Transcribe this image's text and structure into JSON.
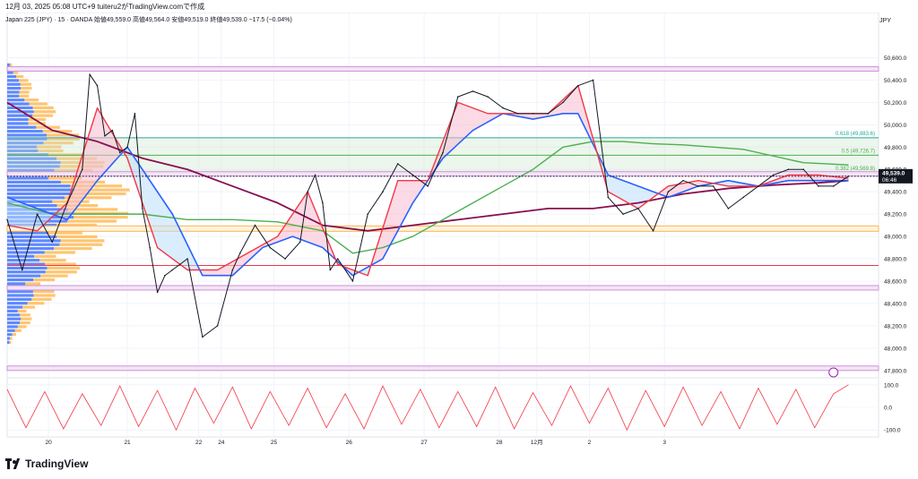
{
  "header": {
    "title": "12月 03, 2025 05:08 UTC+9  tuiteru2がTradingView.comで作成",
    "symbol_line": "Japan 225 (JPY) · 15 · OANDA  始値49,559.0  高値49,564.0  安値49,519.0  終値49,539.0  −17.5 (−0.04%)",
    "currency": "JPY"
  },
  "branding": {
    "logo_text": "TradingView"
  },
  "colors": {
    "price": "#131722",
    "blue_ma": "#2962ff",
    "red_ma": "#f23645",
    "green_ma": "#4caf50",
    "maroon_ma": "#880e4f",
    "volume_profile_blue": "#2962ff",
    "volume_profile_orange": "#ffb74d",
    "purple_zone": "#ce93d8",
    "fib_teal": "#26a69a"
  },
  "chart_data": [
    {
      "type": "line",
      "title": "",
      "xlabel": "",
      "ylabel": "",
      "x_ticks": [
        "20",
        "21",
        "22",
        "24",
        "25",
        "26",
        "27",
        "28",
        "12月",
        "2",
        "3"
      ],
      "y_ticks": [
        "50,600.0",
        "50,400.0",
        "50,200.0",
        "50,000.0",
        "49,800.0",
        "49,600.0",
        "49,400.0",
        "49,200.0",
        "49,000.0",
        "48,800.0",
        "48,600.0",
        "48,400.0",
        "48,200.0",
        "48,000.0",
        "47,800.0"
      ],
      "ylim": [
        47750,
        50700
      ],
      "grid": true,
      "price_label": "49,539.0",
      "countdown_label": "06:46",
      "price_line": 49539,
      "fib_levels": [
        {
          "label": "0.618 (49,883.6)",
          "value": 49883.6
        },
        {
          "label": "0.5 (49,726.7)",
          "value": 49726.7
        },
        {
          "label": "0.382 (49,569.8)",
          "value": 49569.8
        }
      ],
      "horizontal_levels": [
        {
          "value": 50500,
          "kind": "purple_zone"
        },
        {
          "value": 49560,
          "kind": "purple_zone"
        },
        {
          "value": 49070,
          "kind": "orange_band"
        },
        {
          "value": 48740,
          "kind": "red_line"
        },
        {
          "value": 48540,
          "kind": "purple_zone"
        },
        {
          "value": 47820,
          "kind": "purple_zone"
        }
      ],
      "series": [
        {
          "role": "price",
          "x": [
            0,
            0.2,
            0.4,
            0.6,
            0.8,
            1,
            1.1,
            1.2,
            1.3,
            1.4,
            1.5,
            1.6,
            1.7,
            1.8,
            1.9,
            2,
            2.1,
            2.2,
            2.4,
            2.6,
            2.8,
            3,
            3.1,
            3.3,
            3.5,
            3.7,
            3.9,
            4,
            4.1,
            4.2,
            4.3,
            4.4,
            4.6,
            4.8,
            5,
            5.2,
            5.4,
            5.6,
            5.8,
            6,
            6.2,
            6.4,
            6.6,
            6.8,
            7,
            7.2,
            7.4,
            7.6,
            7.8,
            8,
            8.2,
            8.4,
            8.6,
            8.8,
            9,
            9.2,
            9.4,
            9.6,
            9.8,
            10,
            10.2,
            10.4,
            10.6,
            10.8,
            11,
            11.2
          ],
          "y": [
            49150,
            48700,
            49200,
            48950,
            49300,
            49600,
            50450,
            50350,
            49900,
            49950,
            49750,
            49800,
            50100,
            49250,
            48900,
            48500,
            48650,
            48700,
            48800,
            48100,
            48200,
            48700,
            48850,
            49100,
            48900,
            48800,
            48950,
            49400,
            49550,
            49300,
            48700,
            48800,
            48600,
            49200,
            49400,
            49650,
            49550,
            49450,
            49750,
            50250,
            50300,
            50250,
            50150,
            50100,
            50100,
            50100,
            50200,
            50350,
            50400,
            49350,
            49200,
            49250,
            49050,
            49400,
            49500,
            49450,
            49450,
            49250,
            49350,
            49450,
            49550,
            49600,
            49600,
            49450,
            49450,
            49539
          ]
        },
        {
          "role": "blue_ma",
          "x": [
            0,
            0.8,
            1.2,
            1.6,
            2.2,
            2.6,
            3,
            3.4,
            3.8,
            4.2,
            4.6,
            5,
            5.4,
            5.8,
            6.2,
            6.6,
            7,
            7.4,
            7.6,
            8,
            8.4,
            8.8,
            9.2,
            9.6,
            10,
            10.4,
            10.8,
            11.2
          ],
          "y": [
            49350,
            49150,
            49500,
            49800,
            49200,
            48650,
            48650,
            48900,
            49000,
            48900,
            48650,
            48800,
            49300,
            49700,
            49950,
            50100,
            50050,
            50100,
            50100,
            49550,
            49450,
            49350,
            49450,
            49500,
            49450,
            49500,
            49500,
            49500
          ]
        },
        {
          "role": "red_ma",
          "x": [
            0,
            0.4,
            0.8,
            1.2,
            1.6,
            2,
            2.4,
            2.8,
            3.2,
            3.6,
            4,
            4.4,
            4.8,
            5.2,
            5.6,
            6,
            6.4,
            6.8,
            7.2,
            7.6,
            8,
            8.4,
            8.8,
            9.2,
            9.6,
            10,
            10.4,
            10.8,
            11.2
          ],
          "y": [
            49100,
            49050,
            49300,
            50150,
            49700,
            48900,
            48700,
            48700,
            48850,
            49000,
            49400,
            48750,
            48650,
            49500,
            49500,
            50200,
            50100,
            50100,
            50100,
            50350,
            49400,
            49250,
            49450,
            49500,
            49450,
            49450,
            49550,
            49550,
            49520
          ]
        },
        {
          "role": "green_ma",
          "x": [
            0,
            0.6,
            1.2,
            1.8,
            2.4,
            3,
            3.6,
            4.2,
            4.6,
            5,
            5.4,
            5.8,
            6.2,
            6.6,
            7,
            7.4,
            7.8,
            8.2,
            8.6,
            9,
            9.4,
            9.8,
            10.2,
            10.6,
            11.2
          ],
          "y": [
            49300,
            49200,
            49200,
            49200,
            49150,
            49150,
            49130,
            49050,
            48850,
            48900,
            49000,
            49150,
            49300,
            49450,
            49600,
            49800,
            49850,
            49850,
            49830,
            49820,
            49800,
            49780,
            49720,
            49660,
            49640
          ]
        },
        {
          "role": "maroon_ma",
          "x": [
            0,
            0.6,
            1.2,
            1.8,
            2.4,
            3,
            3.6,
            4.2,
            4.8,
            5.4,
            6,
            6.6,
            7.2,
            7.8,
            8.4,
            9,
            9.6,
            10.2,
            10.8,
            11.2
          ],
          "y": [
            50200,
            49950,
            49850,
            49700,
            49600,
            49450,
            49300,
            49100,
            49050,
            49100,
            49150,
            49200,
            49250,
            49250,
            49300,
            49380,
            49430,
            49460,
            49480,
            49500
          ]
        }
      ]
    },
    {
      "type": "line",
      "title": "",
      "y_ticks": [
        "100.0",
        "0.0",
        "-100.0"
      ],
      "ylim": [
        -115,
        115
      ],
      "series": [
        {
          "role": "oscillator",
          "x": [
            0,
            0.25,
            0.5,
            0.75,
            1,
            1.25,
            1.5,
            1.75,
            2,
            2.25,
            2.5,
            2.75,
            3,
            3.25,
            3.5,
            3.75,
            4,
            4.25,
            4.5,
            4.75,
            5,
            5.25,
            5.5,
            5.75,
            6,
            6.25,
            6.5,
            6.75,
            7,
            7.25,
            7.5,
            7.75,
            8,
            8.25,
            8.5,
            8.75,
            9,
            9.25,
            9.5,
            9.75,
            10,
            10.25,
            10.5,
            10.75,
            11,
            11.2
          ],
          "y": [
            80,
            -90,
            70,
            -95,
            60,
            -80,
            95,
            -85,
            75,
            -100,
            85,
            -70,
            90,
            -95,
            70,
            -80,
            85,
            -90,
            60,
            -95,
            95,
            -75,
            80,
            -90,
            70,
            -85,
            90,
            -95,
            65,
            -80,
            95,
            -70,
            85,
            -100,
            75,
            -85,
            90,
            -80,
            70,
            -95,
            85,
            -75,
            80,
            -90,
            60,
            100
          ]
        }
      ]
    }
  ]
}
